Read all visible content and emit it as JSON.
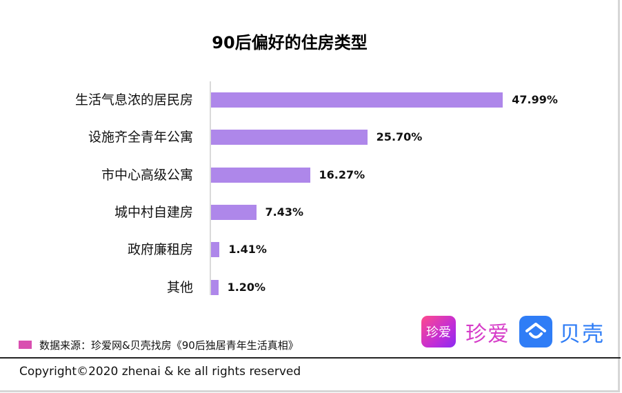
{
  "title": "90后偏好的住房类型",
  "chart_data": {
    "type": "bar",
    "orientation": "horizontal",
    "title": "90后偏好的住房类型",
    "xlabel": "",
    "ylabel": "",
    "categories": [
      "生活气息浓的居民房",
      "设施齐全青年公寓",
      "市中心高级公寓",
      "城中村自建房",
      "政府廉租房",
      "其他"
    ],
    "values": [
      47.99,
      25.7,
      16.27,
      7.43,
      1.41,
      1.2
    ],
    "value_labels": [
      "47.99%",
      "25.70%",
      "16.27%",
      "7.43%",
      "1.41%",
      "1.20%"
    ],
    "unit": "%",
    "grid": false,
    "legend": "none",
    "bar_color": "#ae87ea"
  },
  "rows": [
    {
      "label": "生活气息浓的居民房",
      "value": "47.99%"
    },
    {
      "label": "设施齐全青年公寓",
      "value": "25.70%"
    },
    {
      "label": "市中心高级公寓",
      "value": "16.27%"
    },
    {
      "label": "城中村自建房",
      "value": "7.43%"
    },
    {
      "label": "政府廉租房",
      "value": "1.41%"
    },
    {
      "label": "其他",
      "value": "1.20%"
    }
  ],
  "source": {
    "text": "数据来源：珍爱网&贝壳找房《90后独居青年生活真相》",
    "swatch_color": "#d94fb0"
  },
  "logos": {
    "zhenai_icon_text": "珍爱",
    "zhenai_text": "珍爱",
    "ke_icon": "house-smile-icon",
    "ke_text": "贝壳"
  },
  "copyright": "Copyright©2020 zhenai & ke all rights reserved",
  "colors": {
    "bar": "#ae87ea",
    "zhenai": "#d63cc8",
    "ke": "#2f7df6"
  }
}
